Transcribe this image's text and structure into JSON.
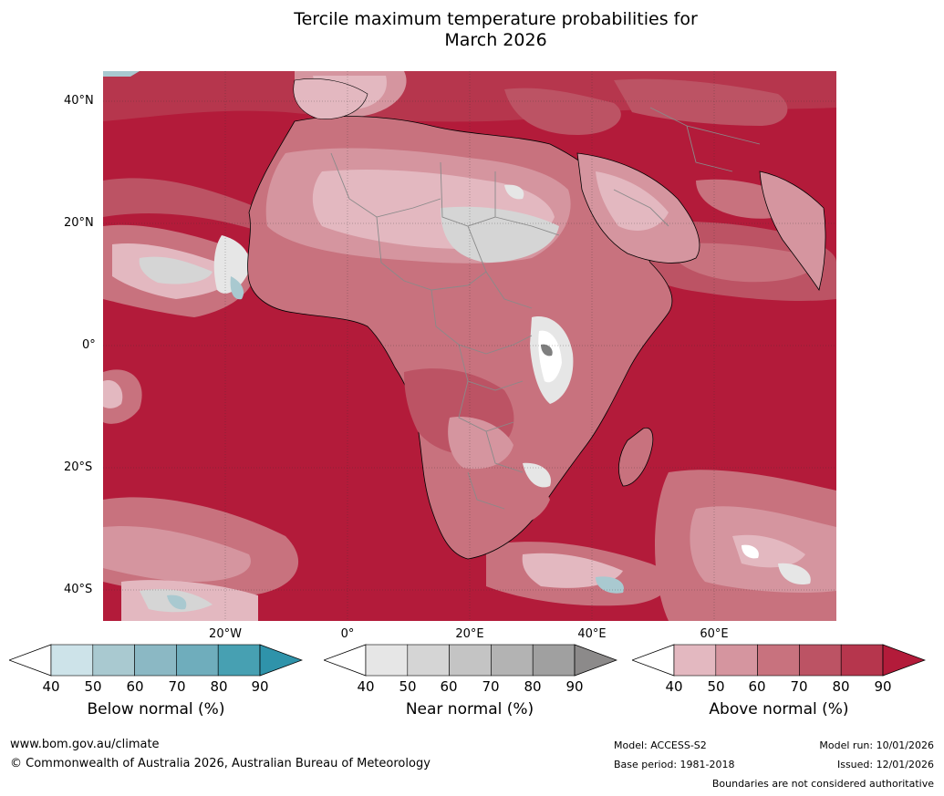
{
  "title": {
    "line1": "Tercile maximum temperature probabilities for",
    "line2": "March 2026"
  },
  "map": {
    "lat_labels": [
      "40°N",
      "20°N",
      "0°",
      "20°S",
      "40°S"
    ],
    "lon_labels": [
      "20°W",
      "0°",
      "20°E",
      "40°E",
      "60°E"
    ]
  },
  "colorbars": [
    {
      "label": "Below normal (%)",
      "ticks": [
        "40",
        "50",
        "60",
        "70",
        "80",
        "90"
      ],
      "colors": [
        "#ffffff",
        "#cde3e9",
        "#a9c9d0",
        "#8bb8c4",
        "#6fadbc",
        "#47a0b2",
        "#2f93aa"
      ]
    },
    {
      "label": "Near normal (%)",
      "ticks": [
        "40",
        "50",
        "60",
        "70",
        "80",
        "90"
      ],
      "colors": [
        "#ffffff",
        "#e6e6e6",
        "#d5d5d5",
        "#c4c4c4",
        "#b3b3b3",
        "#a0a0a0",
        "#8c8a8a"
      ]
    },
    {
      "label": "Above normal (%)",
      "ticks": [
        "40",
        "50",
        "60",
        "70",
        "80",
        "90"
      ],
      "colors": [
        "#ffffff",
        "#e3b8c0",
        "#d5959f",
        "#c8727e",
        "#bc5364",
        "#b6364d",
        "#b31b3a"
      ]
    }
  ],
  "footer": {
    "website": "www.bom.gov.au/climate",
    "copyright": "© Commonwealth of Australia 2026, Australian Bureau of Meteorology",
    "model": "Model: ACCESS-S2",
    "base_period": "Base period: 1981-2018",
    "model_run": "Model run: 10/01/2026",
    "issued": "Issued: 12/01/2026",
    "disclaimer": "Boundaries are not considered authoritative"
  }
}
